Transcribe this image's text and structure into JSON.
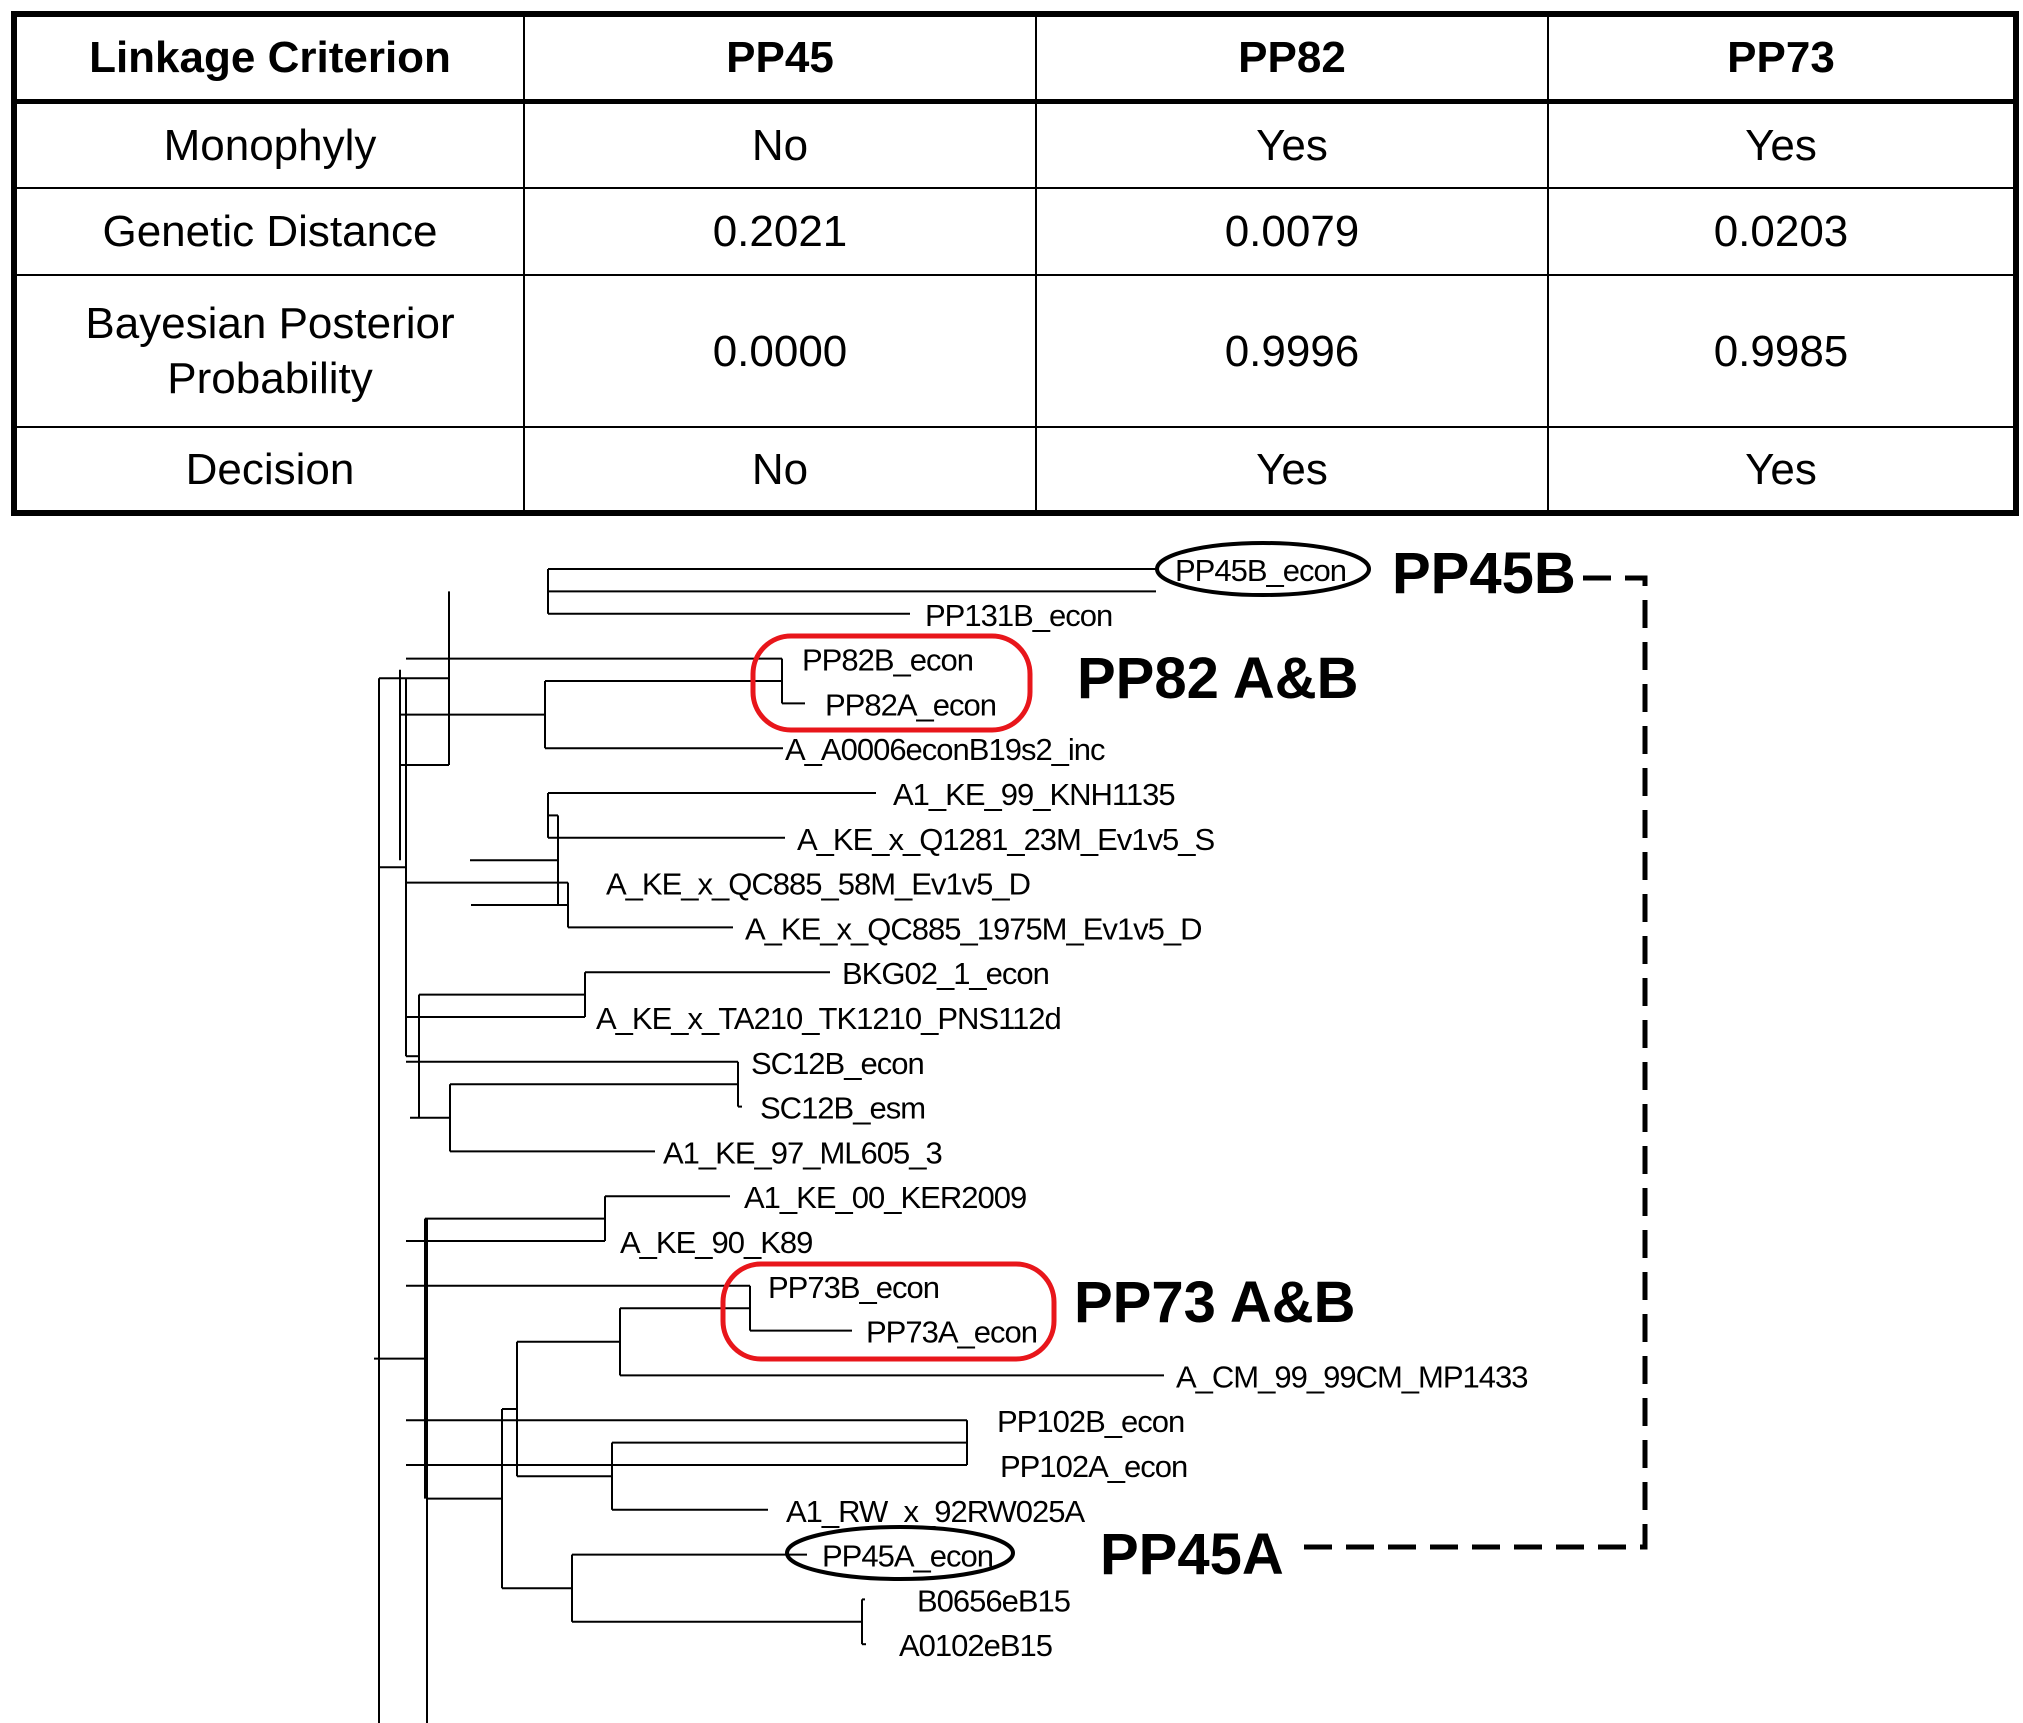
{
  "table": {
    "headers": [
      "Linkage Criterion",
      "PP45",
      "PP82",
      "PP73"
    ],
    "rows": [
      [
        "Monophyly",
        "No",
        "Yes",
        "Yes"
      ],
      [
        "Genetic Distance",
        "0.2021",
        "0.0079",
        "0.0203"
      ],
      [
        "Bayesian Posterior Probability",
        "0.0000",
        "0.9996",
        "0.9985"
      ],
      [
        "Decision",
        "No",
        "Yes",
        "Yes"
      ]
    ]
  },
  "tree": {
    "taxa": [
      "PP45B_econ",
      "PP131B_econ",
      "PP82B_econ",
      "PP82A_econ",
      "A_A0006econB19s2_inc",
      "A1_KE_99_KNH1135",
      "A_KE_x_Q1281_23M_Ev1v5_S",
      "A_KE_x_QC885_58M_Ev1v5_D",
      "A_KE_x_QC885_1975M_Ev1v5_D",
      "BKG02_1_econ",
      "A_KE_x_TA210_TK1210_PNS112d",
      "SC12B_econ",
      "SC12B_esm",
      "A1_KE_97_ML605_3",
      "A1_KE_00_KER2009",
      "A_KE_90_K89",
      "PP73B_econ",
      "PP73A_econ",
      "A_CM_99_99CM_MP1433",
      "PP102B_econ",
      "PP102A_econ",
      "A1_RW_x_92RW025A",
      "PP45A_econ",
      "B0656eB15",
      "A0102eB15"
    ],
    "annotations": {
      "pp45b": "PP45B",
      "pp82": "PP82 A&B",
      "pp73": "PP73 A&B",
      "pp45a": "PP45A"
    },
    "colors": {
      "highlight": "#e8161b",
      "oval": "#000000",
      "line": "#000000"
    }
  }
}
